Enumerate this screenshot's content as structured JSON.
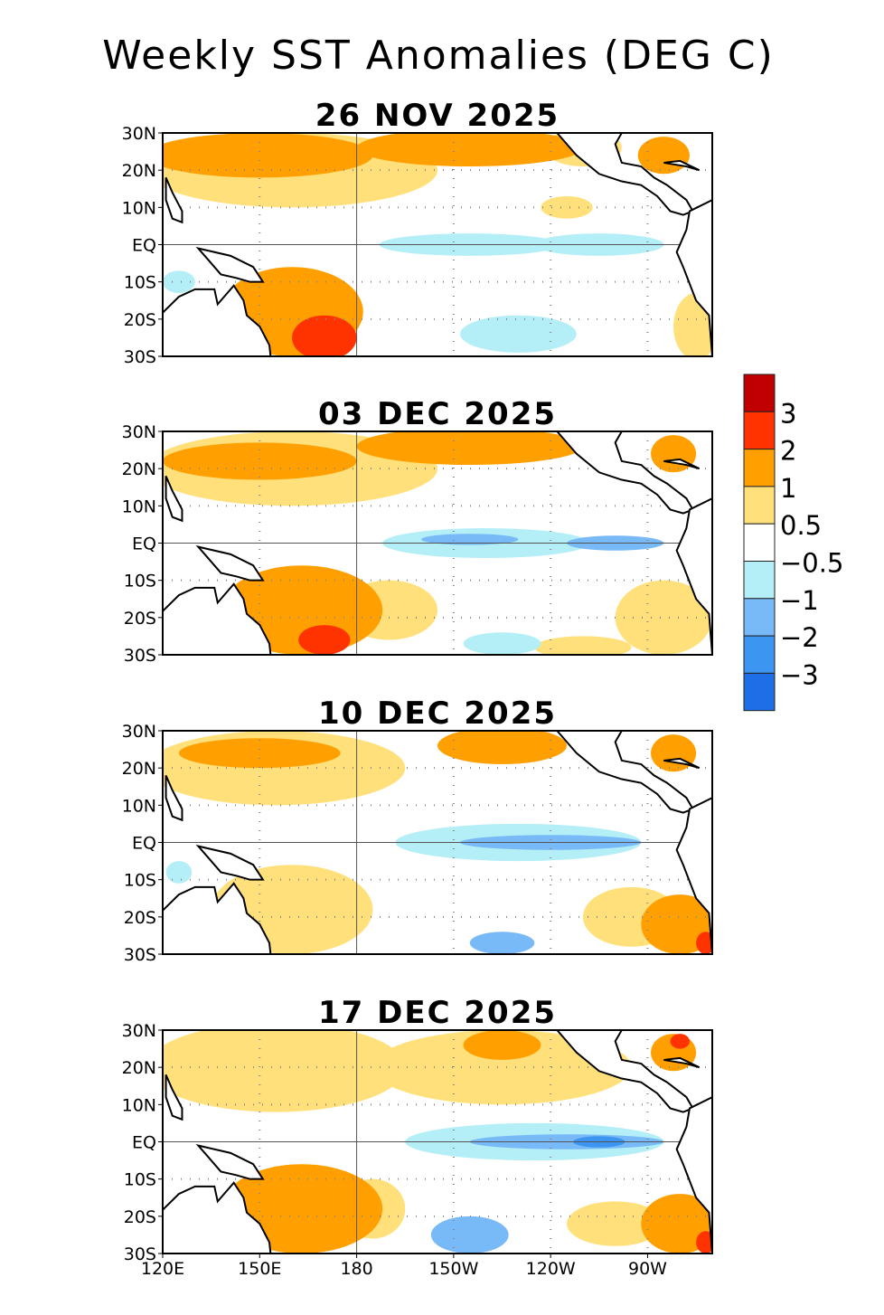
{
  "title": "Weekly SST Anomalies (DEG C)",
  "lat_labels": [
    "30N",
    "20N",
    "10N",
    "EQ",
    "10S",
    "20S",
    "30S"
  ],
  "lon_labels": [
    "120E",
    "150E",
    "180",
    "150W",
    "120W",
    "90W"
  ],
  "lon_ticks": [
    120,
    150,
    180,
    210,
    240,
    270
  ],
  "lon_range": [
    120,
    290
  ],
  "lat_range": [
    -30,
    30
  ],
  "legend": {
    "labels": [
      "3",
      "2",
      "1",
      "0.5",
      "−0.5",
      "−1",
      "−2",
      "−3"
    ],
    "colors": [
      "#c00000",
      "#ff3300",
      "#ffa000",
      "#ffe07a",
      "#ffffff",
      "#b4eef7",
      "#78b9f7",
      "#3c95f0",
      "#1e6ee8"
    ]
  },
  "panels": [
    {
      "date": "26 NOV 2025",
      "features": [
        [
          160,
          20,
          45,
          10,
          0.7
        ],
        [
          150,
          24,
          35,
          6,
          1.5
        ],
        [
          215,
          26,
          35,
          5,
          1.5
        ],
        [
          250,
          26,
          12,
          5,
          0.7
        ],
        [
          275,
          24,
          8,
          5,
          1.5
        ],
        [
          160,
          -18,
          22,
          12,
          1.5
        ],
        [
          170,
          -25,
          10,
          6,
          2.5
        ],
        [
          285,
          -22,
          7,
          9,
          0.7
        ],
        [
          245,
          10,
          8,
          3,
          0.7
        ],
        [
          215,
          0,
          28,
          3,
          -0.7
        ],
        [
          255,
          0,
          20,
          3,
          -0.8
        ],
        [
          230,
          -24,
          18,
          5,
          -0.7
        ],
        [
          125,
          -10,
          5,
          3,
          -0.7
        ]
      ]
    },
    {
      "date": "03 DEC 2025",
      "features": [
        [
          160,
          20,
          45,
          10,
          0.7
        ],
        [
          150,
          22,
          30,
          5,
          1.5
        ],
        [
          215,
          26,
          35,
          5,
          1.5
        ],
        [
          278,
          24,
          7,
          5,
          1.5
        ],
        [
          163,
          -18,
          25,
          12,
          1.5
        ],
        [
          170,
          -26,
          8,
          4,
          2.5
        ],
        [
          190,
          -18,
          15,
          8,
          0.7
        ],
        [
          275,
          -20,
          15,
          10,
          0.7
        ],
        [
          250,
          -28,
          15,
          3,
          0.7
        ],
        [
          220,
          0,
          32,
          4,
          -0.7
        ],
        [
          215,
          1,
          15,
          1.5,
          -1.5
        ],
        [
          260,
          0,
          15,
          2,
          -1.5
        ],
        [
          225,
          -27,
          12,
          3,
          -0.7
        ]
      ]
    },
    {
      "date": "10 DEC 2025",
      "features": [
        [
          155,
          20,
          40,
          10,
          0.7
        ],
        [
          150,
          24,
          25,
          4,
          1.5
        ],
        [
          225,
          26,
          20,
          5,
          1.5
        ],
        [
          278,
          24,
          7,
          5,
          1.5
        ],
        [
          160,
          -18,
          25,
          12,
          0.7
        ],
        [
          280,
          -22,
          12,
          8,
          1.5
        ],
        [
          288,
          -27,
          3,
          3,
          2.5
        ],
        [
          265,
          -20,
          15,
          8,
          0.7
        ],
        [
          230,
          0,
          38,
          5,
          -0.7
        ],
        [
          240,
          0,
          28,
          2,
          -1.5
        ],
        [
          225,
          -27,
          10,
          3,
          -1.5
        ],
        [
          125,
          -8,
          4,
          3,
          -0.7
        ]
      ]
    },
    {
      "date": "17 DEC 2025",
      "features": [
        [
          155,
          20,
          40,
          12,
          0.7
        ],
        [
          225,
          20,
          40,
          10,
          0.7
        ],
        [
          225,
          26,
          12,
          4,
          1.5
        ],
        [
          278,
          24,
          7,
          5,
          1.5
        ],
        [
          280,
          27,
          3,
          2,
          2.5
        ],
        [
          163,
          -18,
          25,
          12,
          1.5
        ],
        [
          185,
          -18,
          10,
          8,
          0.7
        ],
        [
          280,
          -22,
          12,
          8,
          1.5
        ],
        [
          288,
          -27,
          3,
          3,
          2.5
        ],
        [
          260,
          -22,
          15,
          6,
          0.7
        ],
        [
          235,
          0,
          40,
          5,
          -0.7
        ],
        [
          245,
          0,
          30,
          2,
          -1.5
        ],
        [
          255,
          0,
          8,
          1.5,
          -2.5
        ],
        [
          215,
          -25,
          12,
          5,
          -1.5
        ]
      ]
    }
  ]
}
